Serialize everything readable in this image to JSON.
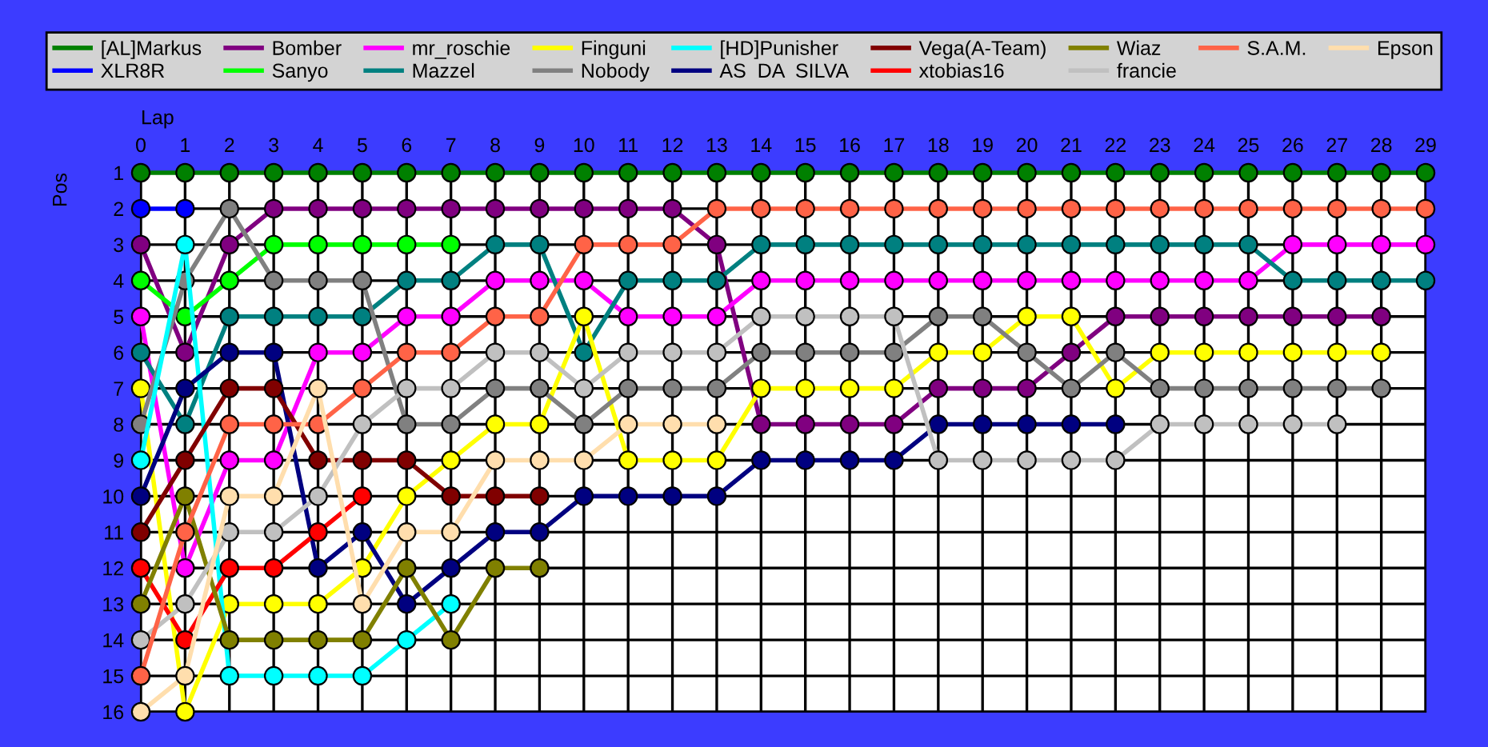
{
  "chart_data": {
    "type": "line",
    "xlabel": "Lap",
    "ylabel": "Pos",
    "x": [
      0,
      1,
      2,
      3,
      4,
      5,
      6,
      7,
      8,
      9,
      10,
      11,
      12,
      13,
      14,
      15,
      16,
      17,
      18,
      19,
      20,
      21,
      22,
      23,
      24,
      25,
      26,
      27,
      28,
      29
    ],
    "xlim": [
      0,
      29
    ],
    "xticks": [
      0,
      1,
      2,
      3,
      4,
      5,
      6,
      7,
      8,
      9,
      10,
      11,
      12,
      13,
      14,
      15,
      16,
      17,
      18,
      19,
      20,
      21,
      22,
      23,
      24,
      25,
      26,
      27,
      28,
      29
    ],
    "ylim": [
      16,
      1
    ],
    "yticks": [
      1,
      2,
      3,
      4,
      5,
      6,
      7,
      8,
      9,
      10,
      11,
      12,
      13,
      14,
      15,
      16
    ],
    "grid": true,
    "legend": "top",
    "marker": "circle",
    "line_style": "solid",
    "series": [
      {
        "name": "[AL]Markus",
        "color": "#008000",
        "values": [
          1,
          1,
          1,
          1,
          1,
          1,
          1,
          1,
          1,
          1,
          1,
          1,
          1,
          1,
          1,
          1,
          1,
          1,
          1,
          1,
          1,
          1,
          1,
          1,
          1,
          1,
          1,
          1,
          1,
          1
        ]
      },
      {
        "name": "XLR8R",
        "color": "#0000ff",
        "values": [
          2,
          2,
          null,
          null,
          null,
          null,
          null,
          null,
          null,
          null,
          null,
          null,
          null,
          null,
          null,
          null,
          null,
          null,
          null,
          null,
          null,
          null,
          null,
          null,
          null,
          null,
          null,
          null,
          null,
          null
        ]
      },
      {
        "name": "Bomber",
        "color": "#800080",
        "values": [
          3,
          6,
          3,
          2,
          2,
          2,
          2,
          2,
          2,
          2,
          2,
          2,
          2,
          3,
          8,
          8,
          8,
          8,
          7,
          7,
          7,
          6,
          5,
          5,
          5,
          5,
          5,
          5,
          5,
          null
        ]
      },
      {
        "name": "Sanyo",
        "color": "#00ff00",
        "values": [
          4,
          5,
          4,
          3,
          3,
          3,
          3,
          3,
          null,
          null,
          null,
          null,
          null,
          null,
          null,
          null,
          null,
          null,
          null,
          null,
          null,
          null,
          null,
          null,
          null,
          null,
          null,
          null,
          null,
          null
        ]
      },
      {
        "name": "mr_roschie",
        "color": "#ff00ff",
        "values": [
          5,
          12,
          9,
          9,
          6,
          6,
          5,
          5,
          4,
          4,
          4,
          5,
          5,
          5,
          4,
          4,
          4,
          4,
          4,
          4,
          4,
          4,
          4,
          4,
          4,
          4,
          3,
          3,
          3,
          3
        ]
      },
      {
        "name": "Mazzel",
        "color": "#008080",
        "values": [
          6,
          8,
          5,
          5,
          5,
          5,
          4,
          4,
          3,
          3,
          6,
          4,
          4,
          4,
          3,
          3,
          3,
          3,
          3,
          3,
          3,
          3,
          3,
          3,
          3,
          3,
          4,
          4,
          4,
          4
        ]
      },
      {
        "name": "Finguni",
        "color": "#ffff00",
        "values": [
          7,
          16,
          13,
          13,
          13,
          12,
          10,
          9,
          8,
          8,
          5,
          9,
          9,
          9,
          7,
          7,
          7,
          7,
          6,
          6,
          5,
          5,
          7,
          6,
          6,
          6,
          6,
          6,
          6,
          null
        ]
      },
      {
        "name": "Nobody",
        "color": "#808080",
        "values": [
          8,
          4,
          2,
          4,
          4,
          4,
          8,
          8,
          7,
          7,
          8,
          7,
          7,
          7,
          6,
          6,
          6,
          6,
          5,
          5,
          6,
          7,
          6,
          7,
          7,
          7,
          7,
          7,
          7,
          null
        ]
      },
      {
        "name": "[HD]Punisher",
        "color": "#00ffff",
        "values": [
          9,
          3,
          15,
          15,
          15,
          15,
          14,
          13,
          null,
          null,
          null,
          null,
          null,
          null,
          null,
          null,
          null,
          null,
          null,
          null,
          null,
          null,
          null,
          null,
          null,
          null,
          null,
          null,
          null,
          null
        ]
      },
      {
        "name": "AS  DA  SILVA",
        "color": "#000080",
        "values": [
          10,
          7,
          6,
          6,
          12,
          11,
          13,
          12,
          11,
          11,
          10,
          10,
          10,
          10,
          9,
          9,
          9,
          9,
          8,
          8,
          8,
          8,
          8,
          null,
          null,
          null,
          null,
          null,
          null,
          null
        ]
      },
      {
        "name": "Vega(A-Team)",
        "color": "#800000",
        "values": [
          11,
          9,
          7,
          7,
          9,
          9,
          9,
          10,
          10,
          10,
          null,
          null,
          null,
          null,
          null,
          null,
          null,
          null,
          null,
          null,
          null,
          null,
          null,
          null,
          null,
          null,
          null,
          null,
          null,
          null
        ]
      },
      {
        "name": "xtobias16",
        "color": "#ff0000",
        "values": [
          12,
          14,
          12,
          12,
          11,
          10,
          null,
          null,
          null,
          null,
          null,
          null,
          null,
          null,
          null,
          null,
          null,
          null,
          null,
          null,
          null,
          null,
          null,
          null,
          null,
          null,
          null,
          null,
          null,
          null
        ]
      },
      {
        "name": "Wiaz",
        "color": "#808000",
        "values": [
          13,
          10,
          14,
          14,
          14,
          14,
          12,
          14,
          12,
          12,
          null,
          null,
          null,
          null,
          null,
          null,
          null,
          null,
          null,
          null,
          null,
          null,
          null,
          null,
          null,
          null,
          null,
          null,
          null,
          null
        ]
      },
      {
        "name": "francie",
        "color": "#c0c0c0",
        "values": [
          14,
          13,
          11,
          11,
          10,
          8,
          7,
          7,
          6,
          6,
          7,
          6,
          6,
          6,
          5,
          5,
          5,
          5,
          9,
          9,
          9,
          9,
          9,
          8,
          8,
          8,
          8,
          8,
          null,
          null
        ]
      },
      {
        "name": "S.A.M.",
        "color": "#ff6347",
        "values": [
          15,
          11,
          8,
          8,
          8,
          7,
          6,
          6,
          5,
          5,
          3,
          3,
          3,
          2,
          2,
          2,
          2,
          2,
          2,
          2,
          2,
          2,
          2,
          2,
          2,
          2,
          2,
          2,
          2,
          2
        ]
      },
      {
        "name": "Epson",
        "color": "#ffdead",
        "values": [
          16,
          15,
          10,
          10,
          7,
          13,
          11,
          11,
          9,
          9,
          9,
          8,
          8,
          8,
          null,
          null,
          null,
          null,
          null,
          null,
          null,
          null,
          null,
          null,
          null,
          null,
          null,
          null,
          null,
          null
        ]
      }
    ]
  }
}
